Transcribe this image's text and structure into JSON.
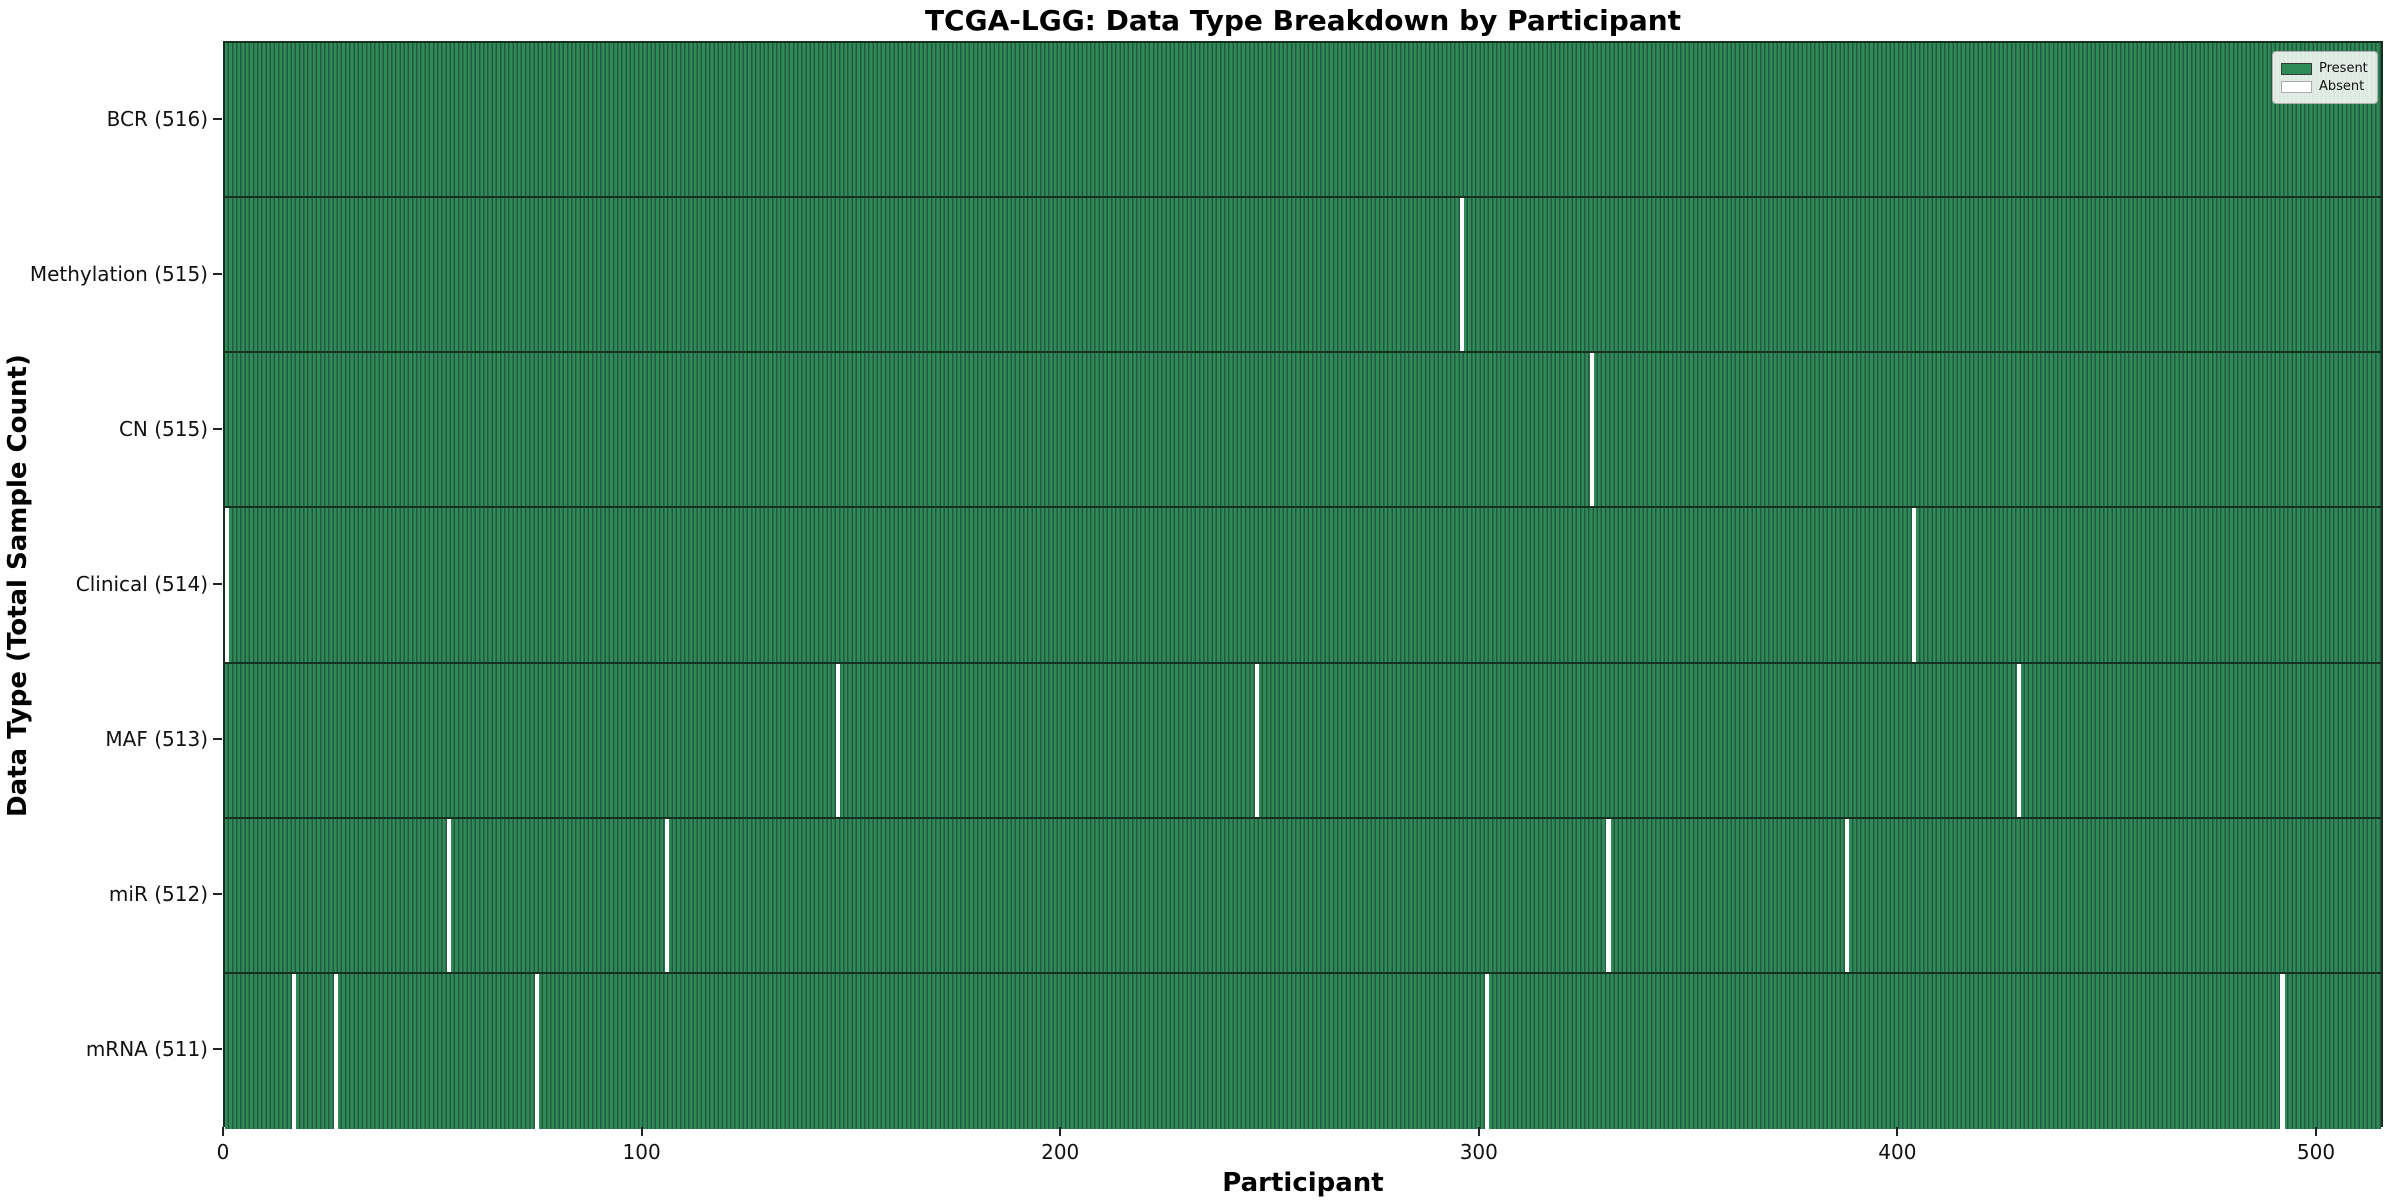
{
  "chart_data": {
    "type": "heatmap",
    "title": "TCGA-LGG: Data Type Breakdown by Participant",
    "xlabel": "Participant",
    "ylabel": "Data Type (Total Sample Count)",
    "x_ticks": [
      0,
      100,
      200,
      300,
      400,
      500
    ],
    "x_range": [
      0,
      516
    ],
    "total_participants": 516,
    "grid": "cell-edges",
    "legend": {
      "position": "upper right",
      "entries": [
        {
          "label": "Present",
          "color": "#2e8b57",
          "edge": "#3a3a3a"
        },
        {
          "label": "Absent",
          "color": "#ffffff",
          "edge": "#aaaaaa"
        }
      ]
    },
    "colors": {
      "present": "#2e8b57",
      "cell_edge": "#245840",
      "row_separator": "#16301f",
      "absent": "#ffffff",
      "frame": "#16301f"
    },
    "rows": [
      {
        "label": "BCR (516)",
        "data_type": "BCR",
        "present_count": 516,
        "absent_participants": []
      },
      {
        "label": "Methylation (515)",
        "data_type": "Methylation",
        "present_count": 515,
        "absent_participants": [
          295
        ]
      },
      {
        "label": "CN (515)",
        "data_type": "CN",
        "present_count": 515,
        "absent_participants": [
          326
        ]
      },
      {
        "label": "Clinical (514)",
        "data_type": "Clinical",
        "present_count": 514,
        "absent_participants": [
          0,
          403
        ]
      },
      {
        "label": "MAF (513)",
        "data_type": "MAF",
        "present_count": 513,
        "absent_participants": [
          146,
          246,
          428
        ]
      },
      {
        "label": "miR (512)",
        "data_type": "miR",
        "present_count": 512,
        "absent_participants": [
          53,
          105,
          330,
          387
        ]
      },
      {
        "label": "mRNA (511)",
        "data_type": "mRNA",
        "present_count": 511,
        "absent_participants": [
          16,
          26,
          74,
          301,
          491
        ]
      }
    ]
  }
}
